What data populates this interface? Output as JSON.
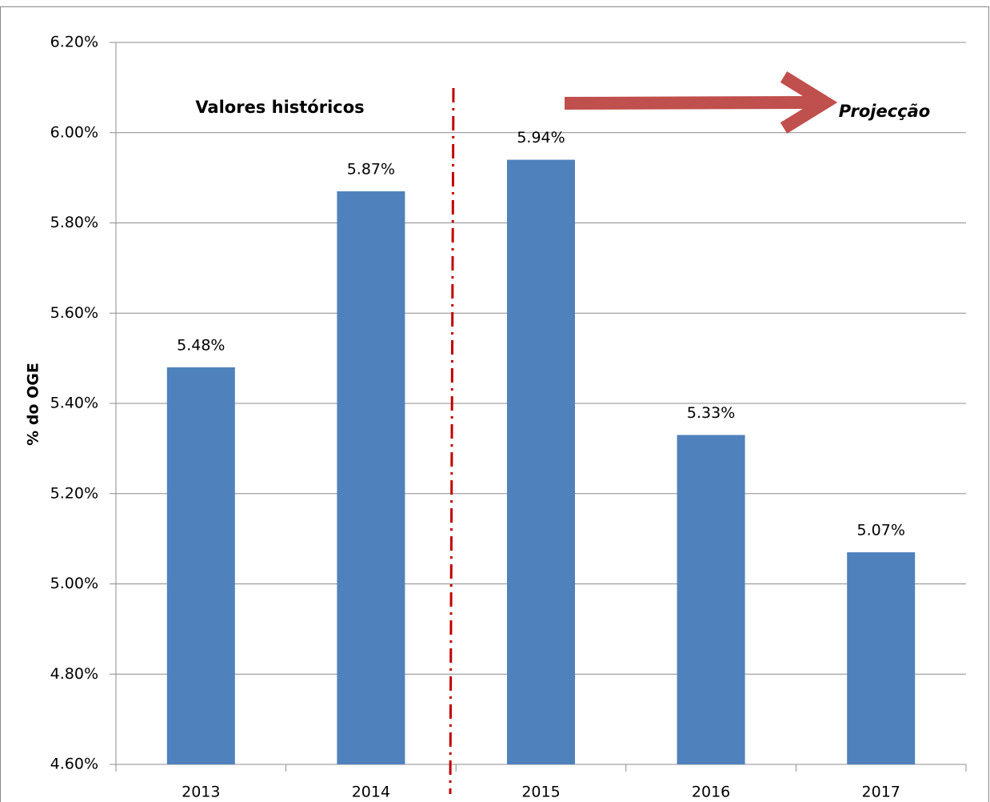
{
  "chart_data": {
    "type": "bar",
    "y_label": "% do OGE",
    "annotations": [
      "Valores históricos",
      "Projecção"
    ],
    "categories": [
      "2013",
      "2014",
      "2015",
      "2016",
      "2017"
    ],
    "values": [
      5.48,
      5.87,
      5.94,
      5.33,
      5.07
    ],
    "value_labels": [
      "5.48%",
      "5.87%",
      "5.94%",
      "5.33%",
      "5.07%"
    ],
    "color": "#4f81bd",
    "ylim": [
      4.6,
      6.2
    ],
    "yticks": [
      {
        "value": 4.6,
        "label": "4.60%"
      },
      {
        "value": 4.8,
        "label": "4.80%"
      },
      {
        "value": 5.0,
        "label": "5.00%"
      },
      {
        "value": 5.2,
        "label": "5.20%"
      },
      {
        "value": 5.4,
        "label": "5.40%"
      },
      {
        "value": 5.6,
        "label": "5.60%"
      },
      {
        "value": 5.8,
        "label": "5.80%"
      },
      {
        "value": 6.0,
        "label": "6.00%"
      },
      {
        "value": 6.2,
        "label": "6.20%"
      }
    ],
    "grid": true
  }
}
